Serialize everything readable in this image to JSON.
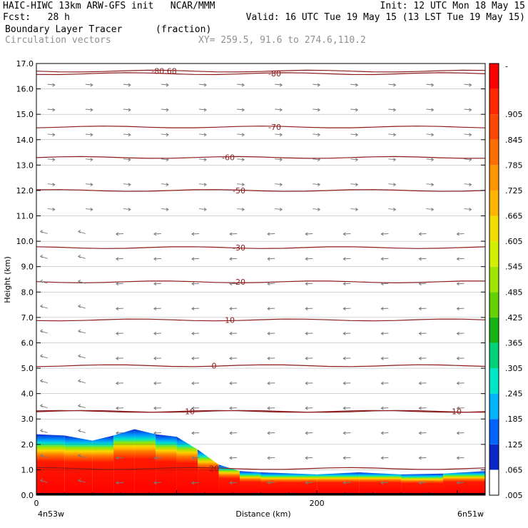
{
  "header": {
    "line1_left": "HAIC-HIWC 13km ARW-GFS init   NCAR/MMM",
    "line1_right": "Init: 12 UTC Mon 18 May 15",
    "line2_left": "Fcst:   28 h",
    "line2_right": "Valid: 16 UTC Tue 19 May 15 (13 LST Tue 19 May 15)",
    "field_name": "Boundary Layer Tracer",
    "field_units": "(fraction)",
    "vector_name": "Circulation vectors",
    "xy_label": "XY= 259.5, 91.6 to 274.6,110.2"
  },
  "chart_data": {
    "type": "heatmap",
    "title": "Boundary Layer Tracer",
    "xlabel": "Distance (km)",
    "ylabel": "Height (km)",
    "xlim": [
      0,
      320
    ],
    "ylim": [
      0,
      17
    ],
    "x_ticks": [
      {
        "v": 0,
        "label": "0"
      },
      {
        "v": 200,
        "label": "200"
      }
    ],
    "x_endpoints": {
      "left": "4n53w",
      "right": "6n51w"
    },
    "y_ticks": [
      "0.0",
      "1.0",
      "2.0",
      "3.0",
      "4.0",
      "5.0",
      "6.0",
      "7.0",
      "8.0",
      "9.0",
      "10.0",
      "11.0",
      "12.0",
      "13.0",
      "14.0",
      "15.0",
      "16.0",
      "17.0"
    ],
    "colorbar": {
      "labels": [
        ".005",
        ".065",
        ".125",
        ".185",
        ".245",
        ".305",
        ".365",
        ".425",
        ".485",
        ".545",
        ".605",
        ".665",
        ".725",
        ".785",
        ".845",
        ".905",
        "-"
      ],
      "colors": [
        "#ffffff",
        "#0a28c8",
        "#0064ff",
        "#00b4ff",
        "#00e6c8",
        "#00d278",
        "#14b414",
        "#64d200",
        "#a0e600",
        "#d2f000",
        "#f0dc00",
        "#ffb400",
        "#ff9600",
        "#ff6e00",
        "#ff4600",
        "#ff2800",
        "#ff0000"
      ]
    },
    "tracer_top_km": [
      {
        "x": 0,
        "top": 2.4
      },
      {
        "x": 20,
        "top": 2.35
      },
      {
        "x": 40,
        "top": 2.15
      },
      {
        "x": 55,
        "top": 2.35
      },
      {
        "x": 70,
        "top": 2.6
      },
      {
        "x": 85,
        "top": 2.4
      },
      {
        "x": 100,
        "top": 2.3
      },
      {
        "x": 115,
        "top": 1.8
      },
      {
        "x": 130,
        "top": 1.2
      },
      {
        "x": 145,
        "top": 0.95
      },
      {
        "x": 160,
        "top": 0.9
      },
      {
        "x": 200,
        "top": 0.82
      },
      {
        "x": 230,
        "top": 0.9
      },
      {
        "x": 260,
        "top": 0.82
      },
      {
        "x": 290,
        "top": 0.85
      },
      {
        "x": 320,
        "top": 0.95
      }
    ],
    "contour_line_color": "#8b1a1a",
    "contours": [
      {
        "label": "-80.68",
        "height": 16.7
      },
      {
        "label": "-80",
        "height": 16.6
      },
      {
        "label": "-70",
        "height": 14.5
      },
      {
        "label": "-60",
        "height": 13.3
      },
      {
        "label": "-50",
        "height": 12.0
      },
      {
        "label": "-30",
        "height": 9.75
      },
      {
        "label": "-20",
        "height": 8.4
      },
      {
        "label": "-10",
        "height": 6.9
      },
      {
        "label": "0",
        "height": 5.1
      },
      {
        "label": "10",
        "height": 3.3
      },
      {
        "label": "10",
        "height": 3.3
      },
      {
        "label": "20",
        "height": 1.05
      }
    ]
  }
}
